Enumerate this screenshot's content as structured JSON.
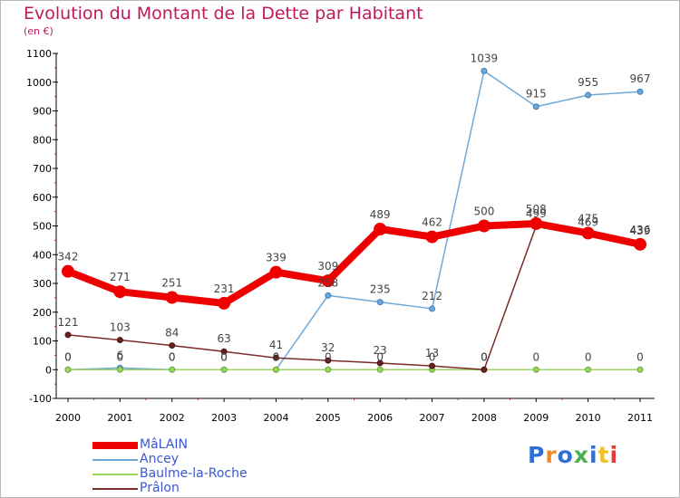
{
  "header": {
    "title": "Evolution du Montant de la Dette par Habitant",
    "subtitle": "(en €)"
  },
  "logo": {
    "text": "Proxiti",
    "colors": [
      "#2f6fd6",
      "#f28c28",
      "#2f6fd6",
      "#4caf50",
      "#2f6fd6",
      "#f2c028",
      "#e53935"
    ]
  },
  "chart_data": {
    "type": "line",
    "title": "Evolution du Montant de la Dette par Habitant",
    "subtitle": "(en €)",
    "xlabel": "",
    "ylabel": "",
    "x": [
      "2000",
      "2001",
      "2002",
      "2003",
      "2004",
      "2005",
      "2006",
      "2007",
      "2008",
      "2009",
      "2010",
      "2011"
    ],
    "ylim": [
      -100,
      1100
    ],
    "yticks": [
      -100,
      0,
      100,
      200,
      300,
      400,
      500,
      600,
      700,
      800,
      900,
      1000,
      1100
    ],
    "grid": false,
    "legend_position": "bottom-left",
    "series": [
      {
        "name": "MâLAIN",
        "color": "#ee0000",
        "width": 8,
        "values": [
          342,
          271,
          251,
          231,
          339,
          309,
          489,
          462,
          500,
          508,
          475,
          436
        ]
      },
      {
        "name": "Ancey",
        "color": "#6fa9d9",
        "width": 1.5,
        "values": [
          0,
          6,
          0,
          0,
          0,
          258,
          235,
          212,
          1039,
          915,
          955,
          967
        ]
      },
      {
        "name": "Baulme-la-Roche",
        "color": "#99d65b",
        "width": 1.5,
        "values": [
          0,
          0,
          0,
          0,
          0,
          0,
          0,
          0,
          0,
          0,
          0,
          0
        ]
      },
      {
        "name": "Prâlon",
        "color": "#7b2a2a",
        "width": 1.5,
        "values": [
          121,
          103,
          84,
          63,
          41,
          32,
          23,
          13,
          0,
          499,
          469,
          439
        ]
      }
    ]
  }
}
